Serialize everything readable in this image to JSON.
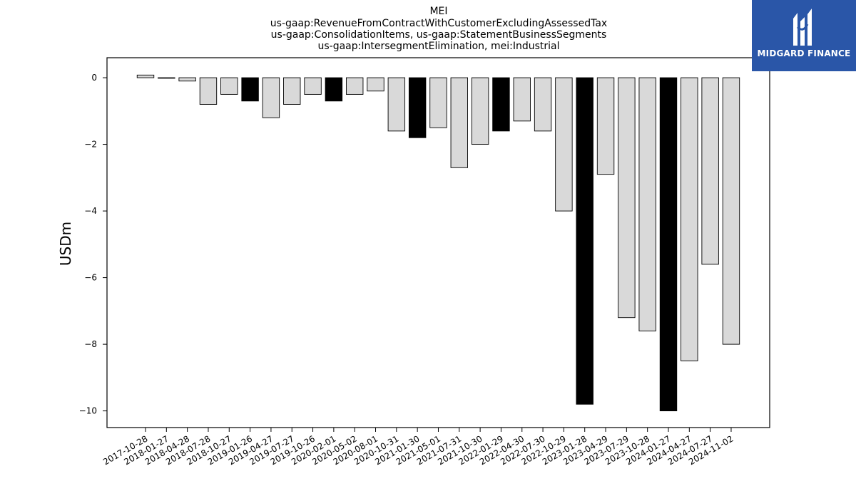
{
  "chart_data": {
    "type": "bar",
    "title": [
      "MEI",
      "us-gaap:RevenueFromContractWithCustomerExcludingAssessedTax",
      "us-gaap:ConsolidationItems, us-gaap:StatementBusinessSegments",
      "us-gaap:IntersegmentElimination, mei:Industrial"
    ],
    "ylabel": "USDm",
    "xlabel": "",
    "ylim": [
      -10.5,
      0.6
    ],
    "yticks": [
      0,
      -2,
      -4,
      -6,
      -8,
      -10
    ],
    "ytick_labels": [
      "0",
      "−2",
      "−4",
      "−6",
      "−8",
      "−10"
    ],
    "categories": [
      "2017-10-28",
      "2018-01-27",
      "2018-04-28",
      "2018-07-28",
      "2018-10-27",
      "2019-01-26",
      "2019-04-27",
      "2019-07-27",
      "2019-10-26",
      "2020-02-01",
      "2020-05-02",
      "2020-08-01",
      "2020-10-31",
      "2021-01-30",
      "2021-05-01",
      "2021-07-31",
      "2021-10-30",
      "2022-01-29",
      "2022-04-30",
      "2022-07-30",
      "2022-10-29",
      "2023-01-28",
      "2023-04-29",
      "2023-07-29",
      "2023-10-28",
      "2024-01-27",
      "2024-04-27",
      "2024-07-27",
      "2024-11-02"
    ],
    "values": [
      0.08,
      -0.01,
      -0.1,
      -0.8,
      -0.5,
      -0.7,
      -1.2,
      -0.8,
      -0.5,
      -0.7,
      -0.5,
      -0.4,
      -1.6,
      -1.8,
      -1.5,
      -2.7,
      -2.0,
      -1.6,
      -1.3,
      -1.6,
      -4.0,
      -9.8,
      -2.9,
      -7.2,
      -7.6,
      -10.0,
      -8.5,
      -5.6,
      -8.0
    ],
    "highlight": [
      false,
      false,
      false,
      false,
      false,
      true,
      false,
      false,
      false,
      true,
      false,
      false,
      false,
      true,
      false,
      false,
      false,
      true,
      false,
      false,
      false,
      true,
      false,
      false,
      false,
      true,
      false,
      false,
      false
    ],
    "colors": {
      "bar": "#d9d9d9",
      "highlight": "#000000",
      "edge": "#000000"
    },
    "grid": false
  },
  "logo": {
    "text": "MIDGARD FINANCE",
    "background": "#2a56a8"
  }
}
